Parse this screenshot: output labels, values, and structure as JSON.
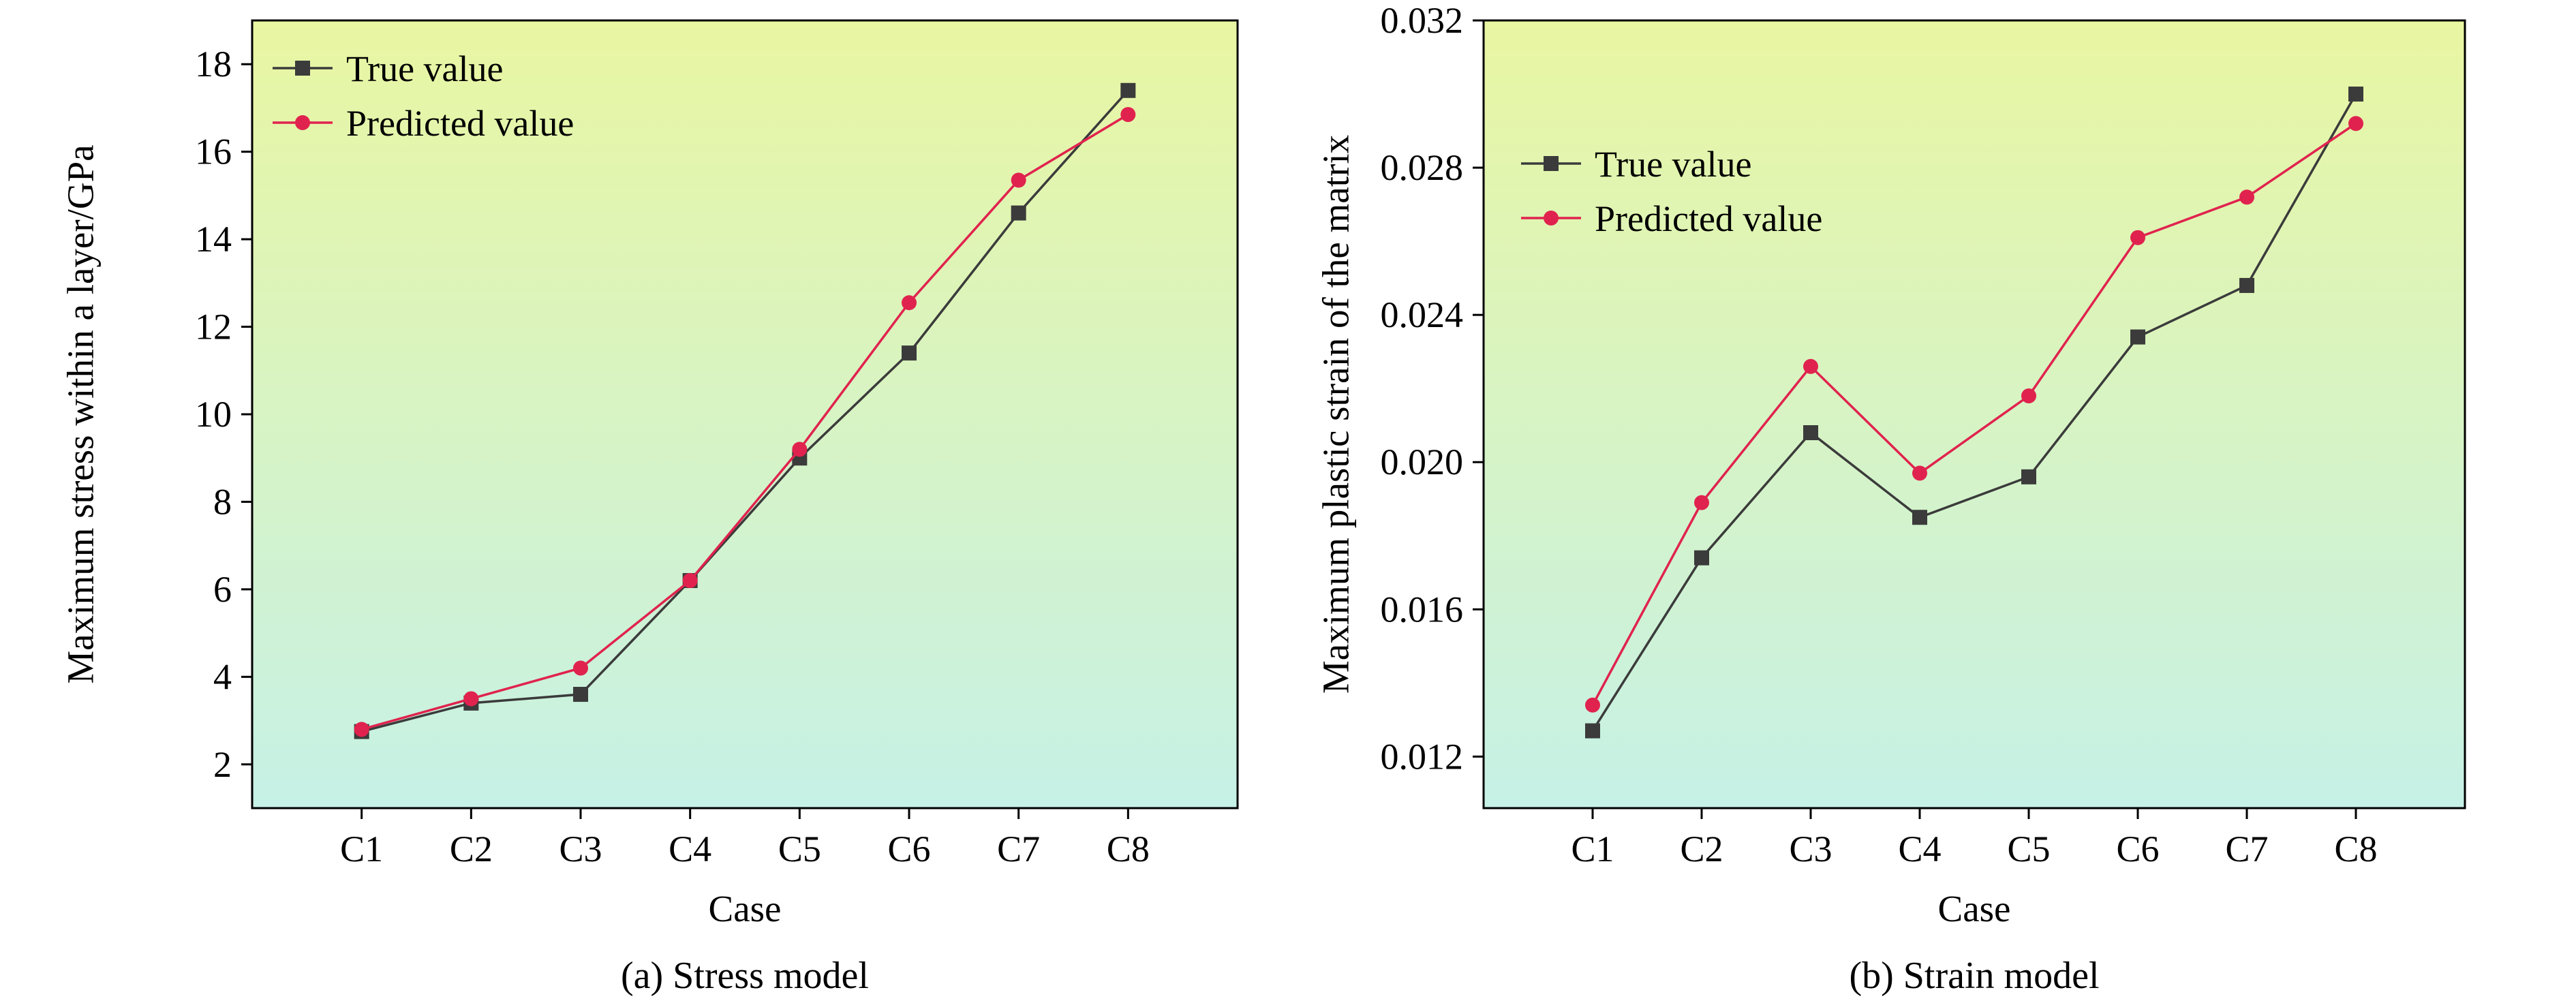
{
  "figure": {
    "background": "#ffffff",
    "text_color": "#000000"
  },
  "chart_data": [
    {
      "type": "line",
      "title": "",
      "caption": "(a) Stress model",
      "xlabel": "Case",
      "ylabel": "Maximum stress within a layer/GPa",
      "categories": [
        "C1",
        "C2",
        "C3",
        "C4",
        "C5",
        "C6",
        "C7",
        "C8"
      ],
      "series": [
        {
          "name": "True value",
          "marker": "square",
          "color": "#3b3b3b",
          "values": [
            2.75,
            3.4,
            3.6,
            6.2,
            9.0,
            11.4,
            14.6,
            17.4
          ]
        },
        {
          "name": "Predicted value",
          "marker": "circle",
          "color": "#e0234e",
          "values": [
            2.8,
            3.5,
            4.2,
            6.2,
            9.2,
            12.55,
            15.35,
            16.85
          ]
        }
      ],
      "ylim": [
        1,
        19
      ],
      "yticks": [
        2,
        4,
        6,
        8,
        10,
        12,
        14,
        16,
        18
      ],
      "ytick_labels": [
        "2",
        "4",
        "6",
        "8",
        "10",
        "12",
        "14",
        "16",
        "18"
      ],
      "legend_position": "inside top-left",
      "grid": false,
      "plot_background_gradient": [
        "#e9f6a2",
        "#c6f1e6"
      ]
    },
    {
      "type": "line",
      "title": "",
      "caption": "(b) Strain model",
      "xlabel": "Case",
      "ylabel": "Maximum plastic strain of the matrix",
      "categories": [
        "C1",
        "C2",
        "C3",
        "C4",
        "C5",
        "C6",
        "C7",
        "C8"
      ],
      "series": [
        {
          "name": "True value",
          "marker": "square",
          "color": "#3b3b3b",
          "values": [
            0.0127,
            0.0174,
            0.0208,
            0.0185,
            0.0196,
            0.0234,
            0.0248,
            0.03
          ]
        },
        {
          "name": "Predicted value",
          "marker": "circle",
          "color": "#e0234e",
          "values": [
            0.0134,
            0.0189,
            0.0226,
            0.0197,
            0.0218,
            0.0261,
            0.0272,
            0.0292
          ]
        }
      ],
      "ylim": [
        0.0106,
        0.032
      ],
      "yticks": [
        0.012,
        0.016,
        0.02,
        0.024,
        0.028,
        0.032
      ],
      "ytick_labels": [
        "0.012",
        "0.016",
        "0.020",
        "0.024",
        "0.028",
        "0.032"
      ],
      "legend_position": "inside top-left",
      "grid": false,
      "plot_background_gradient": [
        "#e9f6a2",
        "#c6f1e6"
      ]
    }
  ]
}
